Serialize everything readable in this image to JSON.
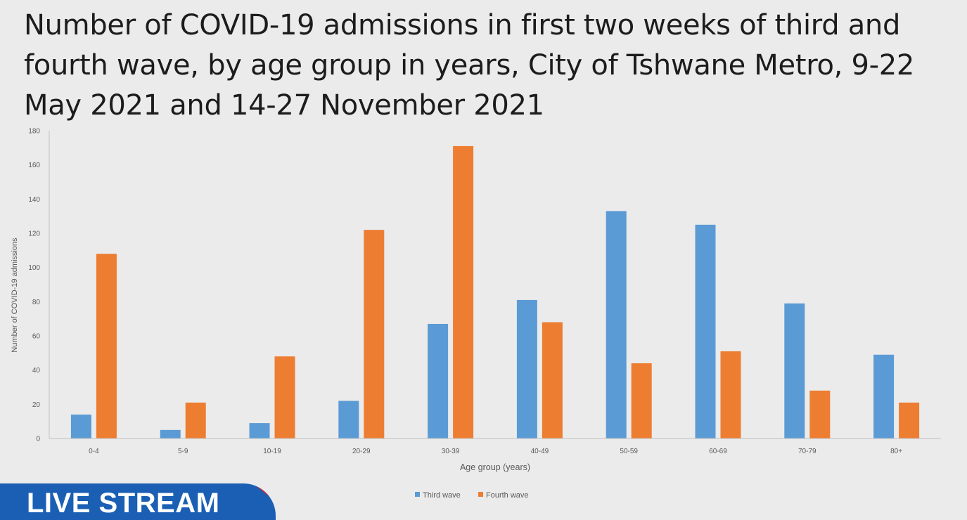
{
  "title": "Number of COVID-19 admissions in first two weeks of third and fourth wave, by age group in years, City of Tshwane Metro, 9-22 May 2021 and 14-27 November 2021",
  "banner": {
    "label": "LIVE STREAM"
  },
  "chart_data": {
    "type": "bar",
    "title": "Number of COVID-19 admissions in first two weeks of third and fourth wave, by age group in years, City of Tshwane Metro, 9-22 May 2021 and 14-27 November 2021",
    "xlabel": "Age group (years)",
    "ylabel": "Number of COVID-19 admissions",
    "ylim": [
      0,
      180
    ],
    "yticks": [
      0,
      20,
      40,
      60,
      80,
      100,
      120,
      140,
      160,
      180
    ],
    "grid": false,
    "legend_position": "bottom",
    "categories": [
      "0-4",
      "5-9",
      "10-19",
      "20-29",
      "30-39",
      "40-49",
      "50-59",
      "60-69",
      "70-79",
      "80+"
    ],
    "series": [
      {
        "name": "Third wave",
        "color": "#5b9bd5",
        "values": [
          14,
          5,
          9,
          22,
          67,
          81,
          133,
          125,
          79,
          49
        ]
      },
      {
        "name": "Fourth wave",
        "color": "#ed7d31",
        "values": [
          108,
          21,
          48,
          122,
          171,
          68,
          44,
          51,
          28,
          21
        ]
      }
    ]
  }
}
